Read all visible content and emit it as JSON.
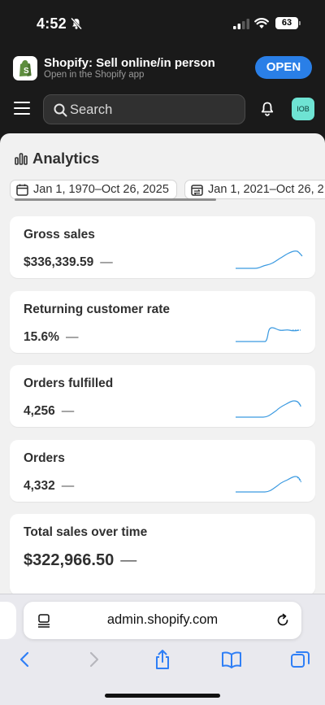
{
  "status_bar": {
    "time": "4:52",
    "battery": "63"
  },
  "app_banner": {
    "title": "Shopify: Sell online/in person",
    "subtitle": "Open in the Shopify app",
    "open_label": "OPEN",
    "accent": "#2a7fe7"
  },
  "topbar": {
    "search_placeholder": "Search",
    "avatar_initials": "IOB",
    "avatar_color": "#6ee3d3"
  },
  "analytics": {
    "heading": "Analytics",
    "date_ranges": [
      {
        "label": "Jan 1, 1970–Oct 26, 2025"
      },
      {
        "label": "Jan 1, 2021–Oct 26, 2"
      }
    ],
    "metrics": [
      {
        "label": "Gross sales",
        "value": "$336,339.59",
        "trend": "—"
      },
      {
        "label": "Returning customer rate",
        "value": "15.6%",
        "trend": "—"
      },
      {
        "label": "Orders fulfilled",
        "value": "4,256",
        "trend": "—"
      },
      {
        "label": "Orders",
        "value": "4,332",
        "trend": "—"
      }
    ],
    "total_sales": {
      "label": "Total sales over time",
      "value": "$322,966.50",
      "trend": "—"
    },
    "sparkline_color": "#3b9ae1"
  },
  "browser": {
    "url": "admin.shopify.com"
  }
}
